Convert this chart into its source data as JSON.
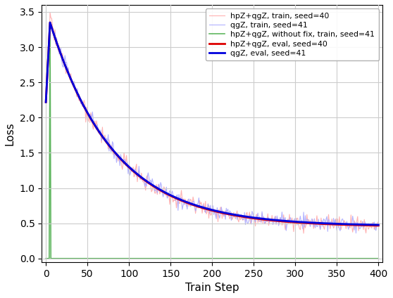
{
  "title": "",
  "xlabel": "Train Step",
  "ylabel": "Loss",
  "xlim": [
    -5,
    405
  ],
  "ylim": [
    -0.05,
    3.6
  ],
  "yticks": [
    0.0,
    0.5,
    1.0,
    1.5,
    2.0,
    2.5,
    3.0,
    3.5
  ],
  "xticks": [
    0,
    50,
    100,
    150,
    200,
    250,
    300,
    350,
    400
  ],
  "legend_labels": [
    "hpZ+qgZ, train, seed=40",
    "qgZ, train, seed=41",
    "hpZ+qgZ, without fix, train, seed=41",
    "hpZ+qgZ, eval, seed=40",
    "qgZ, eval, seed=41"
  ],
  "train_color_1": "#ffaaaa",
  "train_color_2": "#aaaaff",
  "train_color_3": "#44aa44",
  "eval_color_1": "#dd0000",
  "eval_color_2": "#0000dd",
  "seed": 7,
  "n_steps": 401,
  "background_color": "#ffffff",
  "grid_color": "#cccccc"
}
